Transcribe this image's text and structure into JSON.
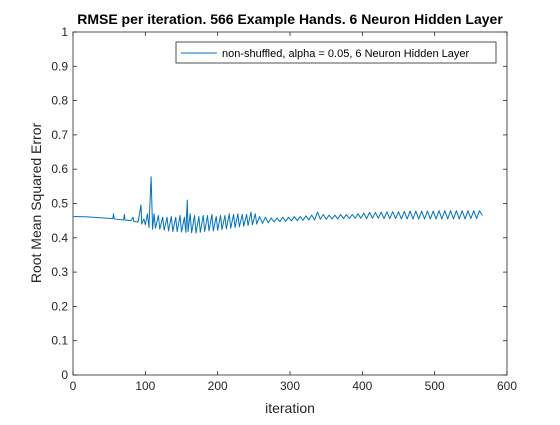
{
  "chart_data": {
    "type": "line",
    "title": "RMSE per iteration. 566 Example Hands. 6 Neuron Hidden Layer",
    "xlabel": "iteration",
    "ylabel": "Root Mean Squared Error",
    "xlim": [
      0,
      600
    ],
    "ylim": [
      0,
      1
    ],
    "xticks": [
      "0",
      "100",
      "200",
      "300",
      "400",
      "500",
      "600"
    ],
    "yticks": [
      "0",
      "0.1",
      "0.2",
      "0.3",
      "0.4",
      "0.5",
      "0.6",
      "0.7",
      "0.8",
      "0.9",
      "1"
    ],
    "grid": false,
    "legend_position": "top-right",
    "series": [
      {
        "name": "non-shuffled, alpha = 0.05, 6 Neuron Hidden Layer",
        "color": "#0072BD",
        "points": [
          [
            1,
            0.462
          ],
          [
            20,
            0.461
          ],
          [
            40,
            0.458
          ],
          [
            55,
            0.456
          ],
          [
            56,
            0.47
          ],
          [
            57,
            0.455
          ],
          [
            70,
            0.452
          ],
          [
            71,
            0.468
          ],
          [
            72,
            0.452
          ],
          [
            80,
            0.45
          ],
          [
            83,
            0.46
          ],
          [
            84,
            0.448
          ],
          [
            90,
            0.446
          ],
          [
            94,
            0.496
          ],
          [
            95,
            0.44
          ],
          [
            98,
            0.455
          ],
          [
            100,
            0.438
          ],
          [
            103,
            0.47
          ],
          [
            105,
            0.43
          ],
          [
            108,
            0.578
          ],
          [
            110,
            0.425
          ],
          [
            112,
            0.47
          ],
          [
            114,
            0.428
          ],
          [
            118,
            0.465
          ],
          [
            120,
            0.425
          ],
          [
            124,
            0.46
          ],
          [
            126,
            0.422
          ],
          [
            130,
            0.46
          ],
          [
            132,
            0.42
          ],
          [
            136,
            0.462
          ],
          [
            138,
            0.418
          ],
          [
            142,
            0.46
          ],
          [
            144,
            0.418
          ],
          [
            148,
            0.465
          ],
          [
            150,
            0.417
          ],
          [
            154,
            0.46
          ],
          [
            156,
            0.416
          ],
          [
            158,
            0.51
          ],
          [
            159,
            0.418
          ],
          [
            162,
            0.47
          ],
          [
            164,
            0.415
          ],
          [
            168,
            0.465
          ],
          [
            170,
            0.414
          ],
          [
            174,
            0.462
          ],
          [
            176,
            0.416
          ],
          [
            180,
            0.465
          ],
          [
            182,
            0.418
          ],
          [
            186,
            0.465
          ],
          [
            188,
            0.42
          ],
          [
            192,
            0.468
          ],
          [
            194,
            0.42
          ],
          [
            198,
            0.462
          ],
          [
            200,
            0.422
          ],
          [
            204,
            0.465
          ],
          [
            206,
            0.424
          ],
          [
            210,
            0.465
          ],
          [
            212,
            0.426
          ],
          [
            216,
            0.47
          ],
          [
            218,
            0.428
          ],
          [
            222,
            0.468
          ],
          [
            224,
            0.43
          ],
          [
            228,
            0.47
          ],
          [
            230,
            0.432
          ],
          [
            234,
            0.468
          ],
          [
            236,
            0.434
          ],
          [
            240,
            0.468
          ],
          [
            242,
            0.436
          ],
          [
            246,
            0.475
          ],
          [
            248,
            0.438
          ],
          [
            252,
            0.47
          ],
          [
            254,
            0.44
          ],
          [
            258,
            0.462
          ],
          [
            262,
            0.442
          ],
          [
            266,
            0.46
          ],
          [
            270,
            0.444
          ],
          [
            274,
            0.458
          ],
          [
            278,
            0.446
          ],
          [
            282,
            0.458
          ],
          [
            286,
            0.447
          ],
          [
            290,
            0.46
          ],
          [
            294,
            0.448
          ],
          [
            298,
            0.46
          ],
          [
            302,
            0.449
          ],
          [
            306,
            0.462
          ],
          [
            310,
            0.45
          ],
          [
            314,
            0.462
          ],
          [
            318,
            0.451
          ],
          [
            322,
            0.464
          ],
          [
            326,
            0.452
          ],
          [
            330,
            0.466
          ],
          [
            334,
            0.452
          ],
          [
            338,
            0.475
          ],
          [
            342,
            0.454
          ],
          [
            346,
            0.468
          ],
          [
            350,
            0.454
          ],
          [
            354,
            0.466
          ],
          [
            358,
            0.455
          ],
          [
            362,
            0.466
          ],
          [
            366,
            0.455
          ],
          [
            370,
            0.468
          ],
          [
            374,
            0.456
          ],
          [
            378,
            0.468
          ],
          [
            382,
            0.456
          ],
          [
            386,
            0.468
          ],
          [
            390,
            0.457
          ],
          [
            394,
            0.47
          ],
          [
            398,
            0.457
          ],
          [
            402,
            0.472
          ],
          [
            406,
            0.456
          ],
          [
            410,
            0.474
          ],
          [
            414,
            0.457
          ],
          [
            418,
            0.474
          ],
          [
            422,
            0.457
          ],
          [
            426,
            0.475
          ],
          [
            430,
            0.456
          ],
          [
            434,
            0.476
          ],
          [
            438,
            0.456
          ],
          [
            442,
            0.476
          ],
          [
            446,
            0.456
          ],
          [
            450,
            0.476
          ],
          [
            454,
            0.455
          ],
          [
            458,
            0.477
          ],
          [
            462,
            0.455
          ],
          [
            466,
            0.478
          ],
          [
            470,
            0.455
          ],
          [
            474,
            0.478
          ],
          [
            478,
            0.455
          ],
          [
            482,
            0.478
          ],
          [
            486,
            0.455
          ],
          [
            490,
            0.478
          ],
          [
            494,
            0.455
          ],
          [
            498,
            0.478
          ],
          [
            502,
            0.455
          ],
          [
            506,
            0.479
          ],
          [
            510,
            0.455
          ],
          [
            514,
            0.479
          ],
          [
            518,
            0.455
          ],
          [
            522,
            0.479
          ],
          [
            526,
            0.455
          ],
          [
            530,
            0.479
          ],
          [
            534,
            0.455
          ],
          [
            538,
            0.479
          ],
          [
            542,
            0.455
          ],
          [
            546,
            0.479
          ],
          [
            550,
            0.456
          ],
          [
            554,
            0.479
          ],
          [
            558,
            0.456
          ],
          [
            562,
            0.479
          ],
          [
            566,
            0.465
          ]
        ]
      }
    ]
  }
}
